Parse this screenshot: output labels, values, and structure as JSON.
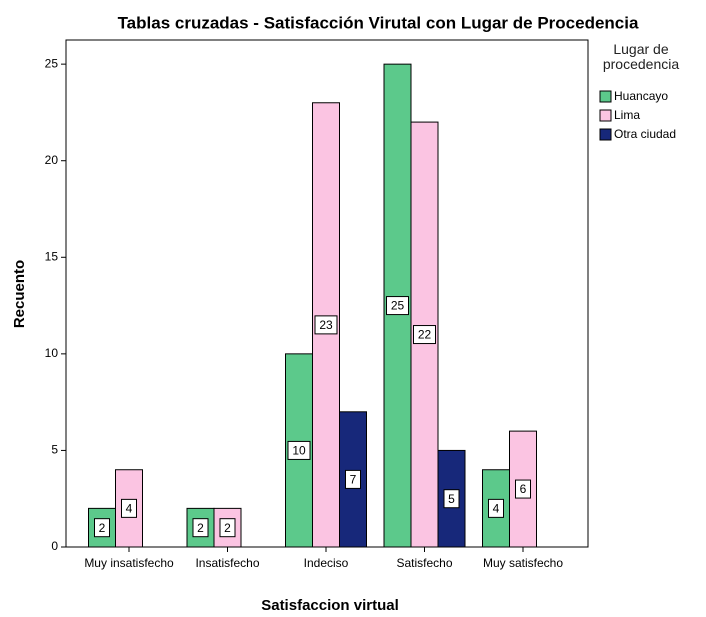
{
  "chart_data": {
    "type": "bar",
    "title": "Tablas cruzadas - Satisfacción Virutal con Lugar de Procedencia",
    "xlabel": "Satisfaccion virtual",
    "ylabel": "Recuento",
    "legend_title": "Lugar de procedencia",
    "categories": [
      "Muy insatisfecho",
      "Insatisfecho",
      "Indeciso",
      "Satisfecho",
      "Muy satisfecho"
    ],
    "series": [
      {
        "name": "Huancayo",
        "color": "#5cc98b",
        "values": [
          2,
          2,
          10,
          25,
          4
        ]
      },
      {
        "name": "Lima",
        "color": "#fbc4e2",
        "values": [
          4,
          2,
          23,
          22,
          6
        ]
      },
      {
        "name": "Otra ciudad",
        "color": "#17287a",
        "values": [
          null,
          null,
          7,
          5,
          null
        ]
      }
    ],
    "ylim": [
      0,
      26.25
    ],
    "yticks": [
      0,
      5,
      10,
      15,
      20,
      25
    ],
    "grid": false,
    "legend": "right"
  }
}
